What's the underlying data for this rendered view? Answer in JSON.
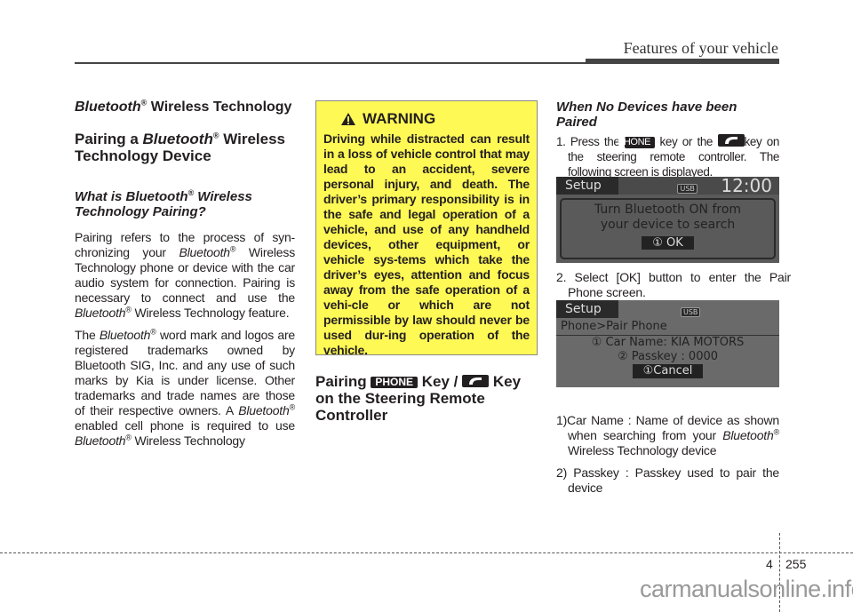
{
  "header": {
    "title": "Features of your vehicle"
  },
  "left": {
    "section_title": [
      "Bluetooth",
      "®",
      " Wireless Technology"
    ],
    "heading": [
      "Pairing a ",
      "Bluetooth",
      "®",
      " Wireless Technology Device"
    ],
    "subheading": [
      "What is Bluetooth",
      "®",
      " Wireless Technology Pairing?"
    ],
    "para1": [
      "Pairing refers to the process of syn-chronizing your ",
      "Bluetooth",
      "®",
      " Wireless Technology phone or device with the car audio system for connection. Pairing is necessary to connect and use the ",
      "Bluetooth",
      "®",
      " Wireless Technology feature."
    ],
    "para2": [
      "The ",
      "Bluetooth",
      "®",
      " word mark and logos are registered trademarks owned by Bluetooth SIG, Inc. and any use of such marks by Kia is under license. Other trademarks and trade names are those of their respective owners. A ",
      "Bluetooth",
      "®",
      " enabled cell phone is required to use ",
      "Bluetooth",
      "®",
      " Wireless Technology"
    ]
  },
  "warning": {
    "icon": "warning-triangle-icon",
    "title": "WARNING",
    "body": "Driving while distracted can result in a loss of vehicle control that may lead to an accident, severe personal injury, and death. The driver’s primary responsibility is in the safe and legal operation of a vehicle, and use of any handheld devices, other equipment, or vehicle sys-tems which take the driver’s eyes, attention and focus away from the safe operation of a vehi-cle or which are not permissible by law should never be used dur-ing operation of the vehicle.",
    "color": "#fff955"
  },
  "middle": {
    "heading": [
      "Pairing ",
      "PHONE",
      " Key / ",
      "Key on the Steering Remote Controller"
    ]
  },
  "right": {
    "heading": "When No Devices have been Paired",
    "step1": [
      "1. Press the ",
      "PHONE",
      " key or the ",
      "key on the steering remote controller. The following screen is displayed."
    ],
    "screen1": {
      "tab": "Setup",
      "usb": "USB",
      "time": "12:00",
      "message": "Turn Bluetooth ON from your device to search",
      "button_num": "①",
      "button": "OK"
    },
    "step2": "2. Select [OK] button to enter the Pair Phone screen.",
    "screen2": {
      "tab": "Setup",
      "usb": "USB",
      "breadcrumb": "Phone>Pair Phone",
      "car_name": "① Car Name: KIA MOTORS",
      "passkey": "② Passkey : 0000",
      "cancel": "①Cancel"
    },
    "note1": [
      "1)Car Name : Name of device as shown when searching from your ",
      "Bluetooth",
      "®",
      " Wireless Technology device"
    ],
    "note2": "2) Passkey : Passkey used to pair the device"
  },
  "footer": {
    "section": "4",
    "page": "255",
    "watermark": "carmanualsonline.info"
  }
}
